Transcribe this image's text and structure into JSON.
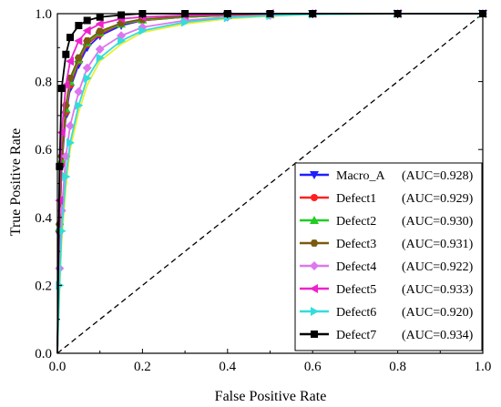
{
  "chart_data": {
    "type": "line",
    "xlabel": "False Positive Rate",
    "ylabel": "True Positive Rate",
    "xlim": [
      0,
      1
    ],
    "ylim": [
      0,
      1
    ],
    "x_ticks": [
      "0.0",
      "0.2",
      "0.4",
      "0.6",
      "0.8",
      "1.0"
    ],
    "y_ticks": [
      "0.0",
      "0.2",
      "0.4",
      "0.6",
      "0.8",
      "1.0"
    ],
    "grid": false,
    "legend_position": "bottom-right",
    "reference_line": {
      "style": "dashed",
      "color": "#000000",
      "x": [
        0,
        1
      ],
      "y": [
        0,
        1
      ]
    },
    "series": [
      {
        "name": "Macro_A",
        "auc_label": "(AUC=0.928)",
        "color": "#1f1fff",
        "marker": "triangle-down",
        "x": [
          0,
          0.005,
          0.01,
          0.02,
          0.03,
          0.05,
          0.07,
          0.1,
          0.15,
          0.2,
          0.3,
          0.4,
          0.5,
          0.6,
          0.8,
          1.0
        ],
        "y": [
          0,
          0.35,
          0.55,
          0.7,
          0.78,
          0.85,
          0.9,
          0.935,
          0.965,
          0.98,
          0.99,
          0.995,
          0.997,
          1.0,
          1.0,
          1.0
        ]
      },
      {
        "name": "Defect1",
        "auc_label": "(AUC=0.929)",
        "color": "#ff2020",
        "marker": "circle",
        "x": [
          0,
          0.005,
          0.01,
          0.02,
          0.03,
          0.05,
          0.07,
          0.1,
          0.15,
          0.2,
          0.3,
          0.4,
          0.5,
          0.6,
          0.8,
          1.0
        ],
        "y": [
          0,
          0.36,
          0.56,
          0.71,
          0.79,
          0.86,
          0.91,
          0.94,
          0.97,
          0.98,
          0.99,
          0.995,
          0.997,
          1.0,
          1.0,
          1.0
        ]
      },
      {
        "name": "Defect2",
        "auc_label": "(AUC=0.930)",
        "color": "#22cc22",
        "marker": "triangle-up",
        "x": [
          0,
          0.005,
          0.01,
          0.02,
          0.03,
          0.05,
          0.07,
          0.1,
          0.15,
          0.2,
          0.3,
          0.4,
          0.5,
          0.6,
          0.8,
          1.0
        ],
        "y": [
          0,
          0.37,
          0.57,
          0.72,
          0.8,
          0.865,
          0.915,
          0.945,
          0.97,
          0.982,
          0.99,
          0.995,
          0.997,
          1.0,
          1.0,
          1.0
        ]
      },
      {
        "name": "Defect3",
        "auc_label": "(AUC=0.931)",
        "color": "#7a5a10",
        "marker": "hexagon",
        "x": [
          0,
          0.005,
          0.01,
          0.02,
          0.03,
          0.05,
          0.07,
          0.1,
          0.15,
          0.2,
          0.3,
          0.4,
          0.5,
          0.6,
          0.8,
          1.0
        ],
        "y": [
          0,
          0.38,
          0.58,
          0.73,
          0.81,
          0.87,
          0.92,
          0.948,
          0.972,
          0.984,
          0.992,
          0.996,
          0.998,
          1.0,
          1.0,
          1.0
        ]
      },
      {
        "name": "Defect4",
        "auc_label": "(AUC=0.922)",
        "color": "#dd77ee",
        "marker": "diamond",
        "x": [
          0,
          0.005,
          0.01,
          0.02,
          0.03,
          0.05,
          0.07,
          0.1,
          0.15,
          0.2,
          0.3,
          0.4,
          0.5,
          0.6,
          0.8,
          1.0
        ],
        "y": [
          0,
          0.25,
          0.42,
          0.58,
          0.67,
          0.77,
          0.84,
          0.895,
          0.935,
          0.96,
          0.98,
          0.99,
          0.995,
          1.0,
          1.0,
          1.0
        ]
      },
      {
        "name": "Defect5",
        "auc_label": "(AUC=0.933)",
        "color": "#ee22cc",
        "marker": "triangle-left",
        "x": [
          0,
          0.005,
          0.01,
          0.02,
          0.03,
          0.05,
          0.07,
          0.1,
          0.15,
          0.2,
          0.3,
          0.4,
          0.5,
          0.6,
          0.8,
          1.0
        ],
        "y": [
          0,
          0.45,
          0.65,
          0.79,
          0.86,
          0.92,
          0.95,
          0.97,
          0.985,
          0.99,
          0.995,
          0.998,
          1.0,
          1.0,
          1.0,
          1.0
        ]
      },
      {
        "name": "Defect6",
        "auc_label": "(AUC=0.920)",
        "color": "#33dddd",
        "marker": "triangle-right",
        "x": [
          0,
          0.005,
          0.01,
          0.02,
          0.03,
          0.05,
          0.07,
          0.1,
          0.15,
          0.2,
          0.3,
          0.4,
          0.5,
          0.6,
          0.8,
          1.0
        ],
        "y": [
          0,
          0.2,
          0.36,
          0.52,
          0.62,
          0.73,
          0.81,
          0.87,
          0.92,
          0.95,
          0.975,
          0.988,
          0.994,
          0.998,
          1.0,
          1.0
        ]
      },
      {
        "name": "Defect7",
        "auc_label": "(AUC=0.934)",
        "color": "#000000",
        "marker": "square",
        "x": [
          0,
          0.005,
          0.01,
          0.02,
          0.03,
          0.05,
          0.07,
          0.1,
          0.15,
          0.2,
          0.3,
          0.4,
          0.5,
          0.6,
          0.8,
          1.0
        ],
        "y": [
          0,
          0.55,
          0.78,
          0.88,
          0.93,
          0.965,
          0.98,
          0.99,
          0.996,
          1.0,
          1.0,
          1.0,
          1.0,
          1.0,
          1.0,
          1.0
        ]
      },
      {
        "name": "",
        "auc_label": "",
        "color": "#eeee33",
        "marker": "none",
        "legend": false,
        "x": [
          0,
          0.005,
          0.01,
          0.02,
          0.03,
          0.05,
          0.07,
          0.1,
          0.15,
          0.2,
          0.3,
          0.4,
          0.5,
          0.6,
          0.8,
          1.0
        ],
        "y": [
          0,
          0.18,
          0.33,
          0.49,
          0.6,
          0.71,
          0.79,
          0.86,
          0.91,
          0.945,
          0.97,
          0.985,
          0.993,
          0.998,
          1.0,
          1.0
        ]
      }
    ]
  }
}
